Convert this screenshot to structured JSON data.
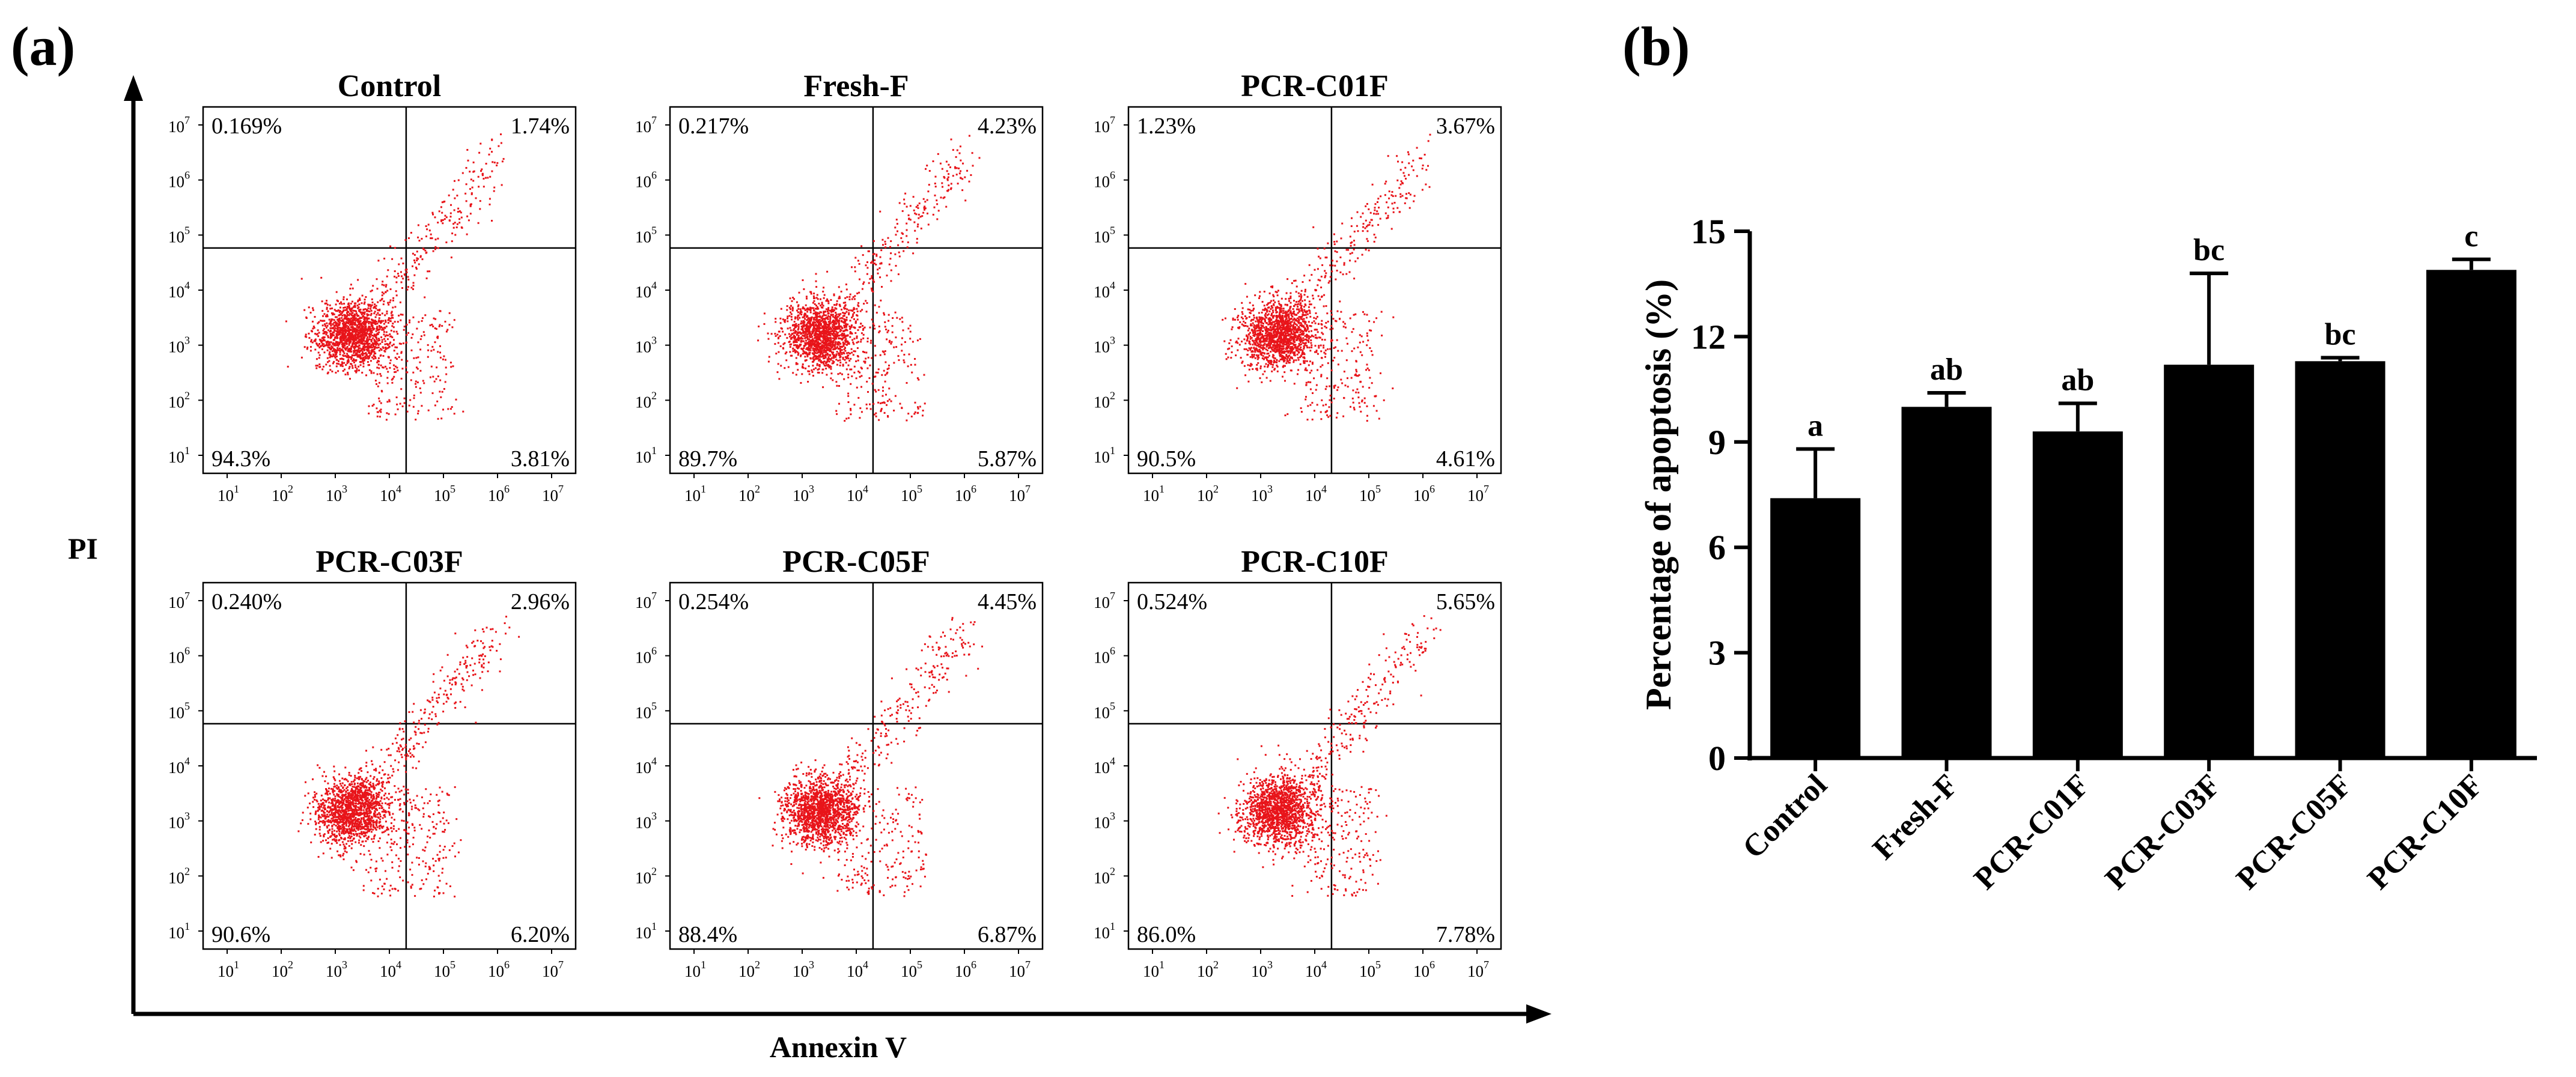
{
  "panel_labels": {
    "a": "(a)",
    "b": "(b)"
  },
  "flow_axes": {
    "y_title": "PI",
    "x_title": "Annexin V"
  },
  "tick_base": "10",
  "chart_data": [
    {
      "type": "scatter",
      "description": "Flow cytometry Annexin V / PI quadrant plots (log scale, 10^1 to 10^7)",
      "xlabel": "Annexin V",
      "ylabel": "PI",
      "axis_exponents": [
        "1",
        "2",
        "3",
        "4",
        "5",
        "6",
        "7"
      ],
      "panels": [
        {
          "name": "Control",
          "q_upper_left": "0.169%",
          "q_upper_right": "1.74%",
          "q_lower_left": "94.3%",
          "q_lower_right": "3.81%"
        },
        {
          "name": "Fresh-F",
          "q_upper_left": "0.217%",
          "q_upper_right": "4.23%",
          "q_lower_left": "89.7%",
          "q_lower_right": "5.87%"
        },
        {
          "name": "PCR-C01F",
          "q_upper_left": "1.23%",
          "q_upper_right": "3.67%",
          "q_lower_left": "90.5%",
          "q_lower_right": "4.61%"
        },
        {
          "name": "PCR-C03F",
          "q_upper_left": "0.240%",
          "q_upper_right": "2.96%",
          "q_lower_left": "90.6%",
          "q_lower_right": "6.20%"
        },
        {
          "name": "PCR-C05F",
          "q_upper_left": "0.254%",
          "q_upper_right": "4.45%",
          "q_lower_left": "88.4%",
          "q_lower_right": "6.87%"
        },
        {
          "name": "PCR-C10F",
          "q_upper_left": "0.524%",
          "q_upper_right": "5.65%",
          "q_lower_left": "86.0%",
          "q_lower_right": "7.78%"
        }
      ]
    },
    {
      "type": "bar",
      "ylabel": "Percentage of apoptosis (%)",
      "xlabel": "",
      "ylim": [
        0,
        15
      ],
      "yticks": [
        0,
        3,
        6,
        9,
        12,
        15
      ],
      "categories": [
        "Control",
        "Fresh-F",
        "PCR-C01F",
        "PCR-C03F",
        "PCR-C05F",
        "PCR-C10F"
      ],
      "values": [
        7.4,
        10.0,
        9.3,
        11.2,
        11.3,
        13.9
      ],
      "errors": [
        1.4,
        0.4,
        0.8,
        2.6,
        0.1,
        0.3
      ],
      "significance": [
        "a",
        "ab",
        "ab",
        "bc",
        "bc",
        "c"
      ],
      "bar_color": "#000000"
    }
  ]
}
